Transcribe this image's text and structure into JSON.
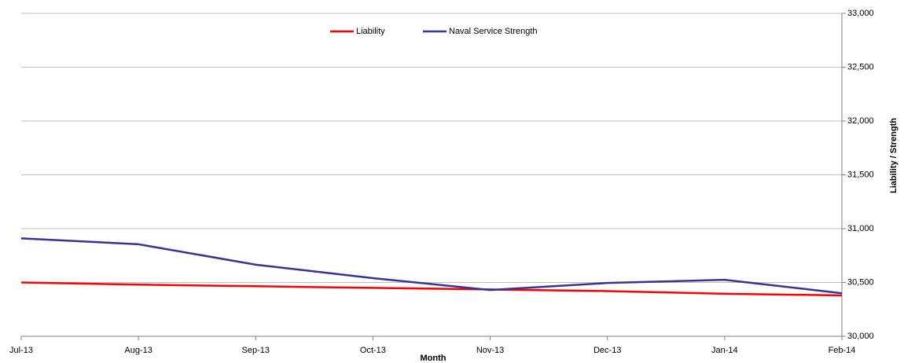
{
  "chart_data": {
    "type": "line",
    "x_label": "Month",
    "y_label": "Liability / Strength",
    "categories": [
      "Jul-13",
      "Aug-13",
      "Sep-13",
      "Oct-13",
      "Nov-13",
      "Dec-13",
      "Jan-14",
      "Feb-14"
    ],
    "series": [
      {
        "name": "Liability",
        "color": "#ff0000",
        "values": [
          30500,
          30480,
          30465,
          30450,
          30435,
          30420,
          30395,
          30380
        ]
      },
      {
        "name": "Naval Service Strength",
        "color": "#333399",
        "values": [
          30910,
          30855,
          30665,
          30540,
          30430,
          30495,
          30525,
          30400
        ]
      }
    ],
    "ylim": [
      30000,
      33000
    ],
    "yticks": [
      {
        "value": 30000,
        "label": "30,000"
      },
      {
        "value": 30500,
        "label": "30,500"
      },
      {
        "value": 31000,
        "label": "31,000"
      },
      {
        "value": 31500,
        "label": "31,500"
      },
      {
        "value": 32000,
        "label": "32,000"
      },
      {
        "value": 32500,
        "label": "32,500"
      },
      {
        "value": 33000,
        "label": "33,000"
      }
    ],
    "grid": true,
    "legend": "top"
  }
}
